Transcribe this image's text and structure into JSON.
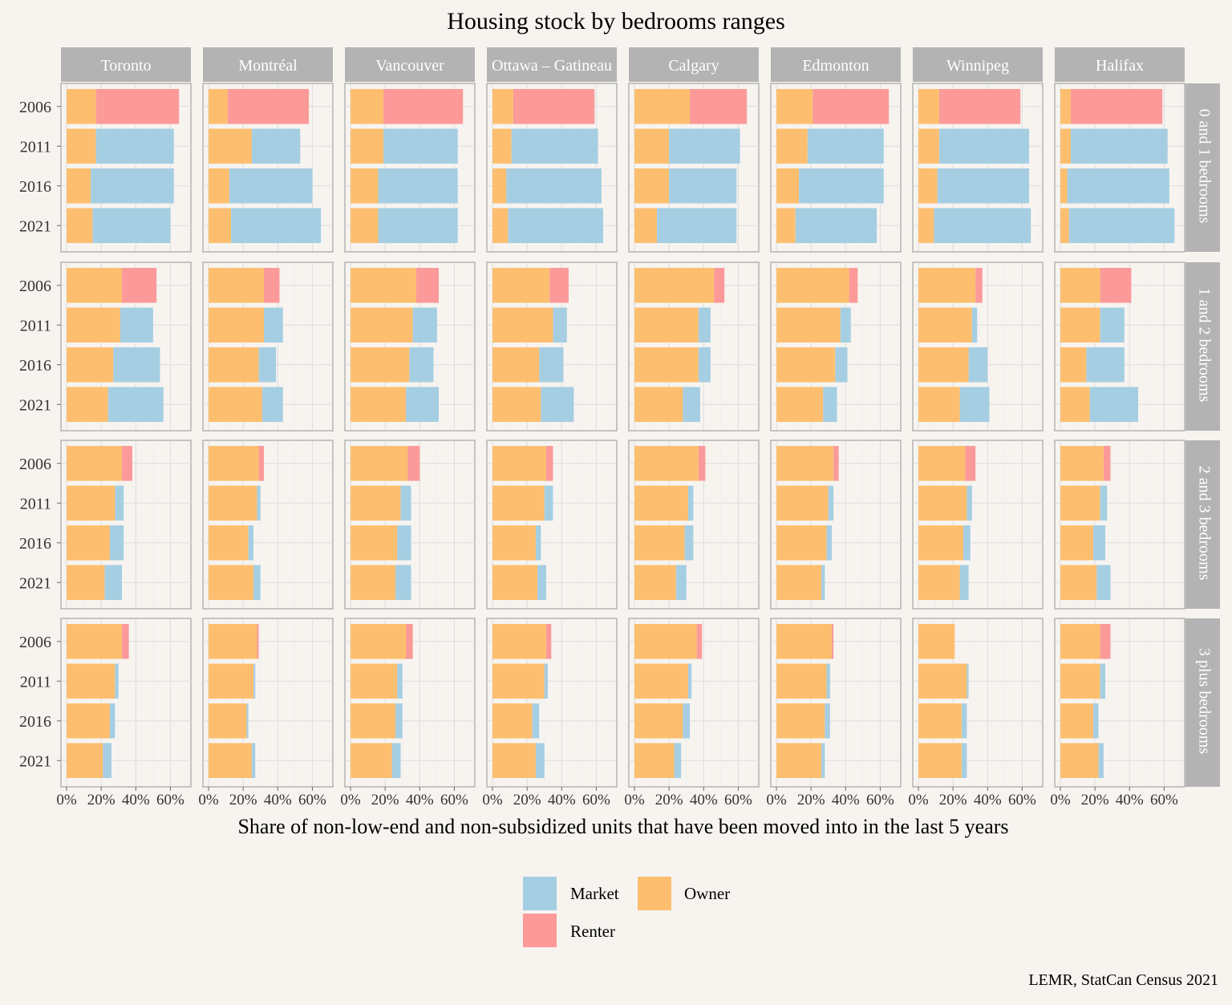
{
  "chart_data": {
    "type": "bar",
    "orientation": "horizontal",
    "stacked": true,
    "title": "Housing stock by bedrooms ranges",
    "xlabel": "Share of non-low-end and non-subsidized units that have been moved into in the last 5 years",
    "ylabel": "",
    "caption": "LEMR, StatCan Census 2021",
    "xlim": [
      0,
      0.7
    ],
    "x_ticks": [
      "0%",
      "20%",
      "40%",
      "60%"
    ],
    "x_tick_values": [
      0,
      0.2,
      0.4,
      0.6
    ],
    "grid": true,
    "legend_position": "bottom",
    "legend": [
      {
        "label": "Market",
        "color": "#a6cee3"
      },
      {
        "label": "Owner",
        "color": "#fdbf6f"
      },
      {
        "label": "Renter",
        "color": "#fb9a99"
      }
    ],
    "colors": {
      "Owner": "#fdbf6f",
      "Renter": "#fb9a99",
      "Market": "#a6cee3"
    },
    "regions": [
      "Toronto",
      "Montréal",
      "Vancouver",
      "Ottawa – Gatineau",
      "Calgary",
      "Edmonton",
      "Winnipeg",
      "Halifax"
    ],
    "bedrooms": [
      "0 and 1 bedrooms",
      "1 and 2 bedrooms",
      "2 and 3 bedrooms",
      "3 plus bedrooms"
    ],
    "years": [
      "2006",
      "2011",
      "2016",
      "2021"
    ],
    "series_note": "each bar: Owner share then second segment (Renter in 2006, Market in 2011–2021); values are [owner, second]",
    "values": [
      [
        [
          [
            0.17,
            0.48
          ],
          [
            0.17,
            0.45
          ],
          [
            0.14,
            0.48
          ],
          [
            0.15,
            0.45
          ]
        ],
        [
          [
            0.32,
            0.2
          ],
          [
            0.31,
            0.19
          ],
          [
            0.27,
            0.27
          ],
          [
            0.24,
            0.32
          ]
        ],
        [
          [
            0.32,
            0.06
          ],
          [
            0.28,
            0.05
          ],
          [
            0.25,
            0.08
          ],
          [
            0.22,
            0.1
          ]
        ],
        [
          [
            0.32,
            0.04
          ],
          [
            0.28,
            0.02
          ],
          [
            0.25,
            0.03
          ],
          [
            0.21,
            0.05
          ]
        ]
      ],
      [
        [
          [
            0.11,
            0.47
          ],
          [
            0.25,
            0.28
          ],
          [
            0.12,
            0.48
          ],
          [
            0.13,
            0.52
          ]
        ],
        [
          [
            0.32,
            0.09
          ],
          [
            0.32,
            0.11
          ],
          [
            0.29,
            0.1
          ],
          [
            0.31,
            0.12
          ]
        ],
        [
          [
            0.29,
            0.03
          ],
          [
            0.28,
            0.02
          ],
          [
            0.23,
            0.03
          ],
          [
            0.26,
            0.04
          ]
        ],
        [
          [
            0.28,
            0.01
          ],
          [
            0.26,
            0.01
          ],
          [
            0.22,
            0.01
          ],
          [
            0.25,
            0.02
          ]
        ]
      ],
      [
        [
          [
            0.19,
            0.46
          ],
          [
            0.19,
            0.43
          ],
          [
            0.16,
            0.46
          ],
          [
            0.16,
            0.46
          ]
        ],
        [
          [
            0.38,
            0.13
          ],
          [
            0.36,
            0.14
          ],
          [
            0.34,
            0.14
          ],
          [
            0.32,
            0.19
          ]
        ],
        [
          [
            0.33,
            0.07
          ],
          [
            0.29,
            0.06
          ],
          [
            0.27,
            0.08
          ],
          [
            0.26,
            0.09
          ]
        ],
        [
          [
            0.32,
            0.04
          ],
          [
            0.27,
            0.03
          ],
          [
            0.26,
            0.04
          ],
          [
            0.24,
            0.05
          ]
        ]
      ],
      [
        [
          [
            0.12,
            0.47
          ],
          [
            0.11,
            0.5
          ],
          [
            0.08,
            0.55
          ],
          [
            0.09,
            0.55
          ]
        ],
        [
          [
            0.33,
            0.11
          ],
          [
            0.35,
            0.08
          ],
          [
            0.27,
            0.14
          ],
          [
            0.28,
            0.19
          ]
        ],
        [
          [
            0.31,
            0.04
          ],
          [
            0.3,
            0.05
          ],
          [
            0.25,
            0.03
          ],
          [
            0.26,
            0.05
          ]
        ],
        [
          [
            0.31,
            0.03
          ],
          [
            0.3,
            0.02
          ],
          [
            0.23,
            0.04
          ],
          [
            0.25,
            0.05
          ]
        ]
      ],
      [
        [
          [
            0.32,
            0.33
          ],
          [
            0.2,
            0.41
          ],
          [
            0.2,
            0.39
          ],
          [
            0.13,
            0.46
          ]
        ],
        [
          [
            0.46,
            0.06
          ],
          [
            0.37,
            0.07
          ],
          [
            0.37,
            0.07
          ],
          [
            0.28,
            0.1
          ]
        ],
        [
          [
            0.37,
            0.04
          ],
          [
            0.31,
            0.03
          ],
          [
            0.29,
            0.05
          ],
          [
            0.24,
            0.06
          ]
        ],
        [
          [
            0.36,
            0.03
          ],
          [
            0.31,
            0.02
          ],
          [
            0.28,
            0.04
          ],
          [
            0.23,
            0.04
          ]
        ]
      ],
      [
        [
          [
            0.21,
            0.44
          ],
          [
            0.18,
            0.44
          ],
          [
            0.13,
            0.49
          ],
          [
            0.11,
            0.47
          ]
        ],
        [
          [
            0.42,
            0.05
          ],
          [
            0.37,
            0.06
          ],
          [
            0.34,
            0.07
          ],
          [
            0.27,
            0.08
          ]
        ],
        [
          [
            0.33,
            0.03
          ],
          [
            0.3,
            0.03
          ],
          [
            0.29,
            0.03
          ],
          [
            0.26,
            0.02
          ]
        ],
        [
          [
            0.32,
            0.01
          ],
          [
            0.29,
            0.02
          ],
          [
            0.28,
            0.03
          ],
          [
            0.26,
            0.02
          ]
        ]
      ],
      [
        [
          [
            0.12,
            0.47
          ],
          [
            0.12,
            0.52
          ],
          [
            0.11,
            0.53
          ],
          [
            0.09,
            0.56
          ]
        ],
        [
          [
            0.33,
            0.04
          ],
          [
            0.31,
            0.03
          ],
          [
            0.29,
            0.11
          ],
          [
            0.24,
            0.17
          ]
        ],
        [
          [
            0.27,
            0.06
          ],
          [
            0.28,
            0.03
          ],
          [
            0.26,
            0.04
          ],
          [
            0.24,
            0.05
          ]
        ],
        [
          [
            0.21,
            0.0
          ],
          [
            0.28,
            0.01
          ],
          [
            0.25,
            0.03
          ],
          [
            0.25,
            0.03
          ]
        ]
      ],
      [
        [
          [
            0.06,
            0.53
          ],
          [
            0.06,
            0.56
          ],
          [
            0.04,
            0.59
          ],
          [
            0.05,
            0.61
          ]
        ],
        [
          [
            0.23,
            0.18
          ],
          [
            0.23,
            0.14
          ],
          [
            0.15,
            0.22
          ],
          [
            0.17,
            0.28
          ]
        ],
        [
          [
            0.25,
            0.04
          ],
          [
            0.23,
            0.04
          ],
          [
            0.19,
            0.07
          ],
          [
            0.21,
            0.08
          ]
        ],
        [
          [
            0.23,
            0.06
          ],
          [
            0.23,
            0.03
          ],
          [
            0.19,
            0.03
          ],
          [
            0.22,
            0.03
          ]
        ]
      ]
    ]
  }
}
